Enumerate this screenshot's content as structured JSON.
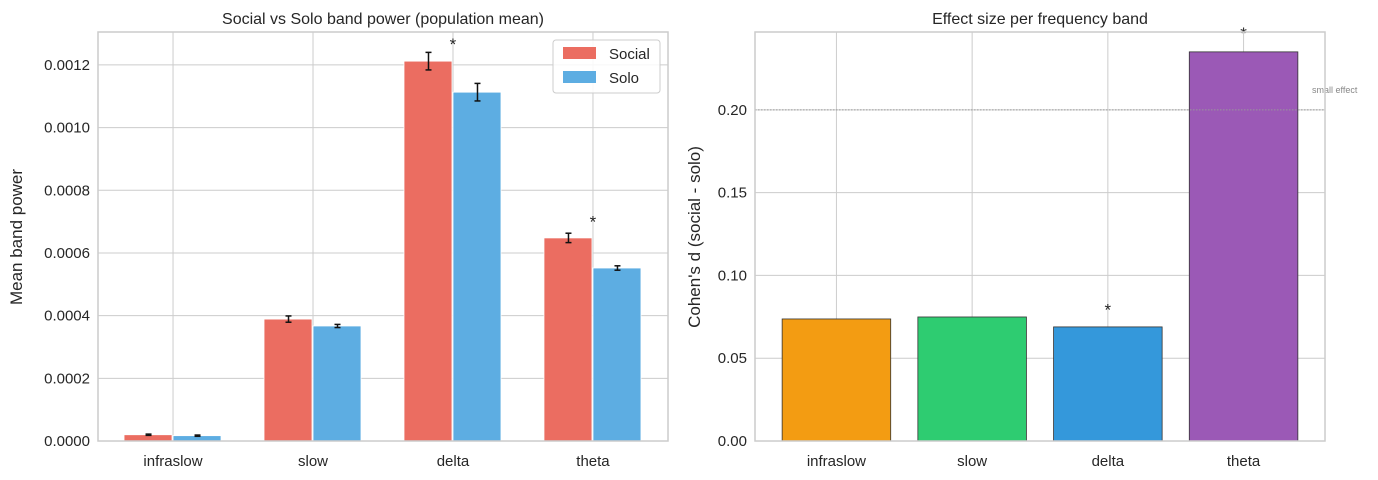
{
  "chart_data": [
    {
      "type": "bar",
      "title": "Social vs Solo band power (population mean)",
      "xlabel": "",
      "ylabel": "Mean band power",
      "categories": [
        "infraslow",
        "slow",
        "delta",
        "theta"
      ],
      "ylim": [
        0,
        0.001305
      ],
      "yticks": [
        "0.0000",
        "0.0002",
        "0.0004",
        "0.0006",
        "0.0008",
        "0.0010",
        "0.0012"
      ],
      "grid": true,
      "legend": "top-right",
      "series": [
        {
          "name": "Social",
          "color": "#eb6d61",
          "values": [
            2e-05,
            0.000389,
            0.001212,
            0.000648
          ],
          "errors": [
            2e-06,
            1e-05,
            2.8e-05,
            1.5e-05
          ]
        },
        {
          "name": "Solo",
          "color": "#5dade2",
          "values": [
            1.7e-05,
            0.000367,
            0.001113,
            0.000552
          ],
          "errors": [
            2e-06,
            5e-06,
            2.8e-05,
            7e-06
          ]
        }
      ],
      "annotations": [
        {
          "text": "*",
          "category": "delta",
          "y": 0.00137
        },
        {
          "text": "*",
          "category": "theta",
          "y": 0.00072
        }
      ]
    },
    {
      "type": "bar",
      "title": "Effect size per frequency band",
      "xlabel": "",
      "ylabel": "Cohen's d (social - solo)",
      "categories": [
        "infraslow",
        "slow",
        "delta",
        "theta"
      ],
      "values": [
        0.0737,
        0.0749,
        0.0689,
        0.235
      ],
      "colors": [
        "#f39c12",
        "#2ecc71",
        "#3498db",
        "#9b59b6"
      ],
      "ylim": [
        0,
        0.247
      ],
      "yticks": [
        "0.00",
        "0.05",
        "0.10",
        "0.15",
        "0.20"
      ],
      "grid": true,
      "reference_line": {
        "y": 0.2,
        "label": "small effect",
        "color": "#999999"
      },
      "annotations": [
        {
          "text": "*",
          "category": "delta",
          "y": 0.083
        },
        {
          "text": "*",
          "category": "theta",
          "y": 0.25
        }
      ]
    }
  ]
}
